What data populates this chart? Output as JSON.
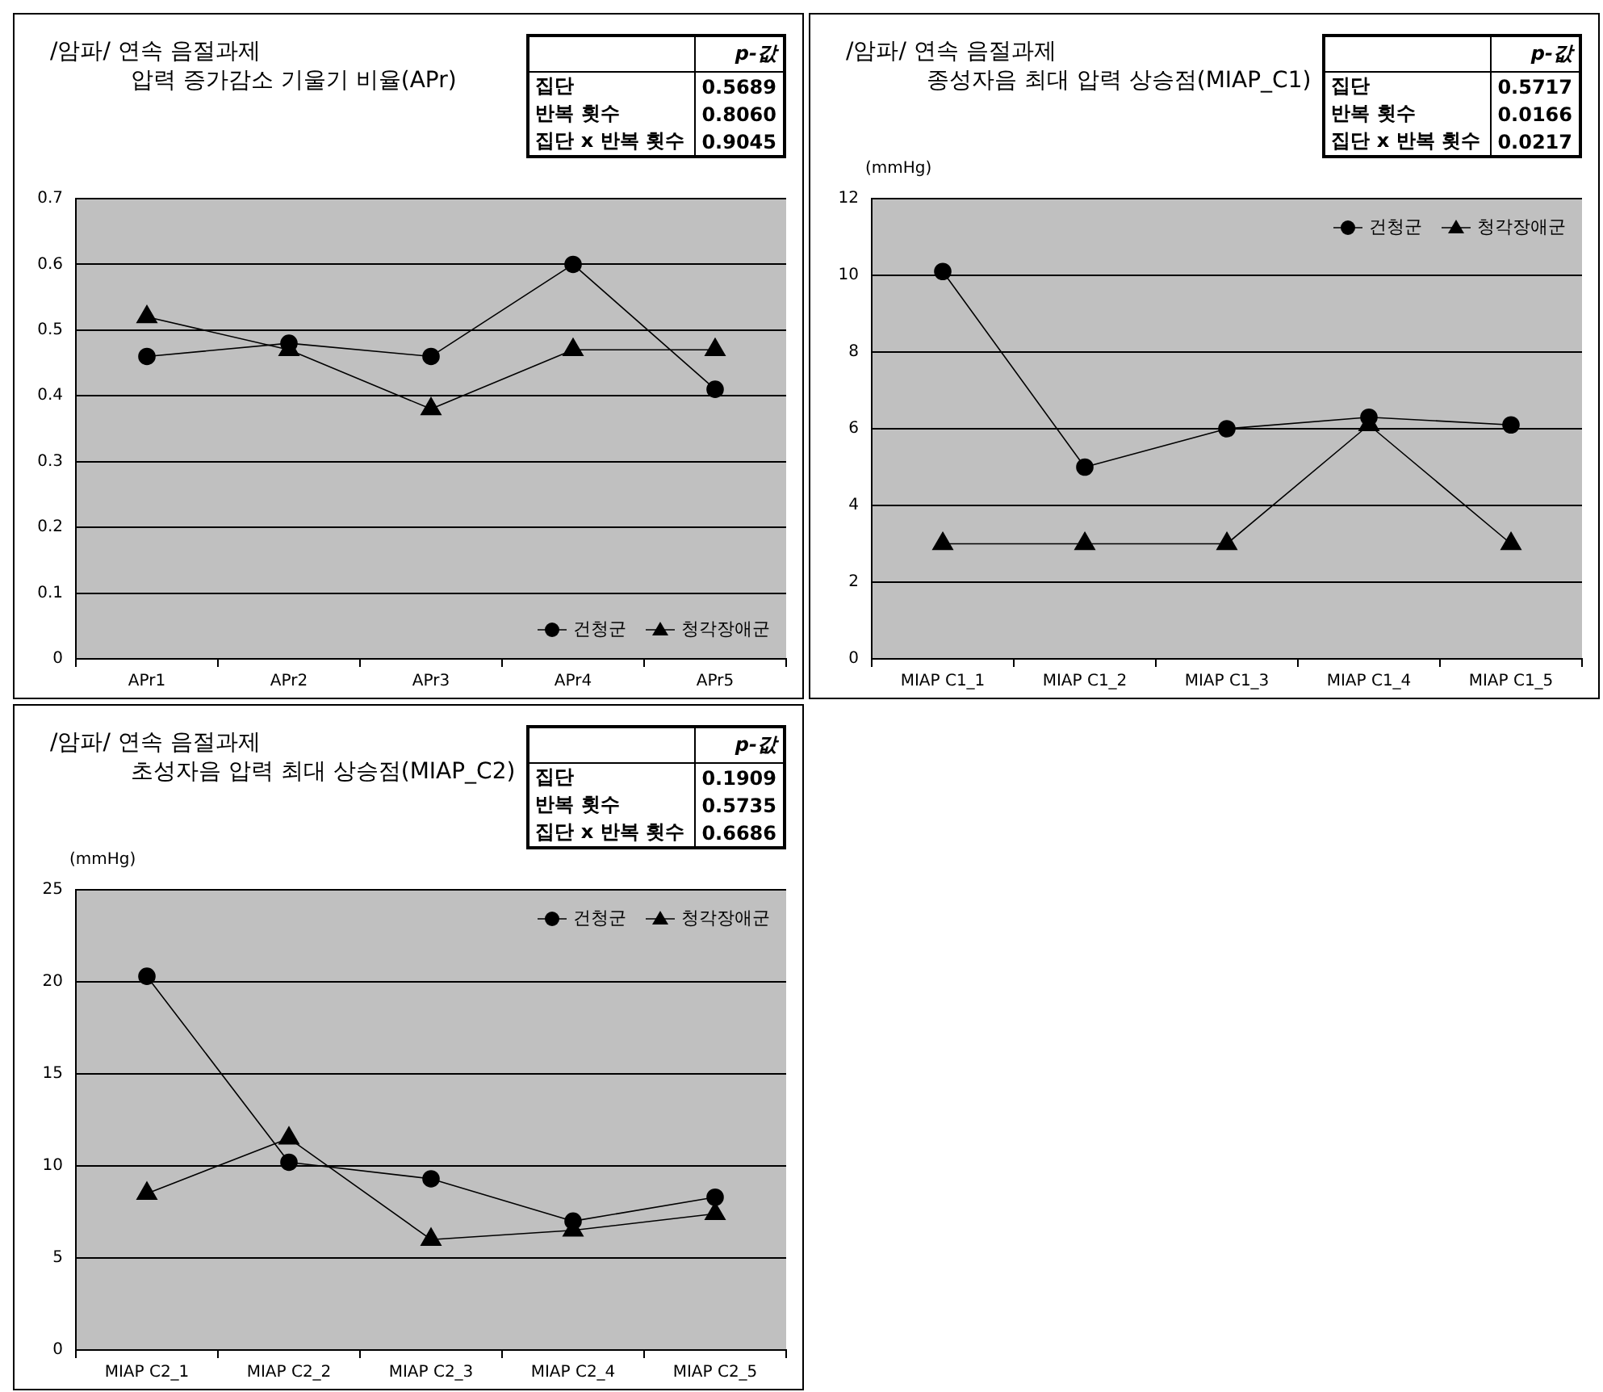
{
  "chart_data": [
    {
      "type": "line",
      "title": "/암파/ 연속 음절과제",
      "subtitle": "압력 증가감소 기울기 비율(APr)",
      "categories": [
        "APr1",
        "APr2",
        "APr3",
        "APr4",
        "APr5"
      ],
      "series": [
        {
          "name": "건청군",
          "color": "#000000",
          "marker": "circle",
          "values": [
            0.46,
            0.48,
            0.46,
            0.6,
            0.41
          ]
        },
        {
          "name": "청각장애군",
          "color": "#000000",
          "marker": "triangle",
          "values": [
            0.52,
            0.47,
            0.38,
            0.47,
            0.47
          ]
        }
      ],
      "ylim": [
        0,
        0.7
      ],
      "yticks": [
        0,
        0.1,
        0.2,
        0.3,
        0.4,
        0.5,
        0.6,
        0.7
      ],
      "grid": "y",
      "legend": "bottom right",
      "annotations": [
        "p-값",
        "집단",
        "0.5689",
        "반복 횟수",
        "0.8060",
        "집단 x 반복 횟수",
        "0.9045"
      ]
    },
    {
      "type": "line",
      "title": "/암파/ 연속 음절과제",
      "subtitle": "종성자음 최대 압력 상승점(MIAP_C1)",
      "ylabel": "(mmHg)",
      "categories": [
        "MIAP C1_1",
        "MIAP C1_2",
        "MIAP C1_3",
        "MIAP C1_4",
        "MIAP C1_5"
      ],
      "series": [
        {
          "name": "건청군",
          "color": "#000000",
          "marker": "circle",
          "values": [
            10.1,
            5.0,
            6.0,
            6.3,
            6.1
          ]
        },
        {
          "name": "청각장애군",
          "color": "#000000",
          "marker": "triangle",
          "values": [
            3.0,
            3.0,
            3.0,
            6.1,
            3.0
          ]
        }
      ],
      "ylim": [
        0,
        12
      ],
      "yticks": [
        0,
        2,
        4,
        6,
        8,
        10,
        12
      ],
      "grid": "y",
      "legend": "top right",
      "annotations": [
        "p-값",
        "집단",
        "0.5717",
        "반복 횟수",
        "0.0166",
        "집단 x 반복 횟수",
        "0.0217"
      ]
    },
    {
      "type": "line",
      "title": "/암파/ 연속 음절과제",
      "subtitle": "초성자음 압력 최대 상승점(MIAP_C2)",
      "ylabel": "(mmHg)",
      "categories": [
        "MIAP C2_1",
        "MIAP C2_2",
        "MIAP C2_3",
        "MIAP C2_4",
        "MIAP C2_5"
      ],
      "series": [
        {
          "name": "건청군",
          "color": "#000000",
          "marker": "circle",
          "values": [
            20.3,
            10.2,
            9.3,
            7.0,
            8.3
          ]
        },
        {
          "name": "청각장애군",
          "color": "#000000",
          "marker": "triangle",
          "values": [
            8.5,
            11.5,
            6.0,
            6.5,
            7.4
          ]
        }
      ],
      "ylim": [
        0,
        25
      ],
      "yticks": [
        0,
        5,
        10,
        15,
        20,
        25
      ],
      "grid": "y",
      "legend": "top right",
      "annotations": [
        "p-값",
        "집단",
        "0.1909",
        "반복 횟수",
        "0.5735",
        "집단 x 반복 횟수",
        "0.6686"
      ]
    }
  ]
}
